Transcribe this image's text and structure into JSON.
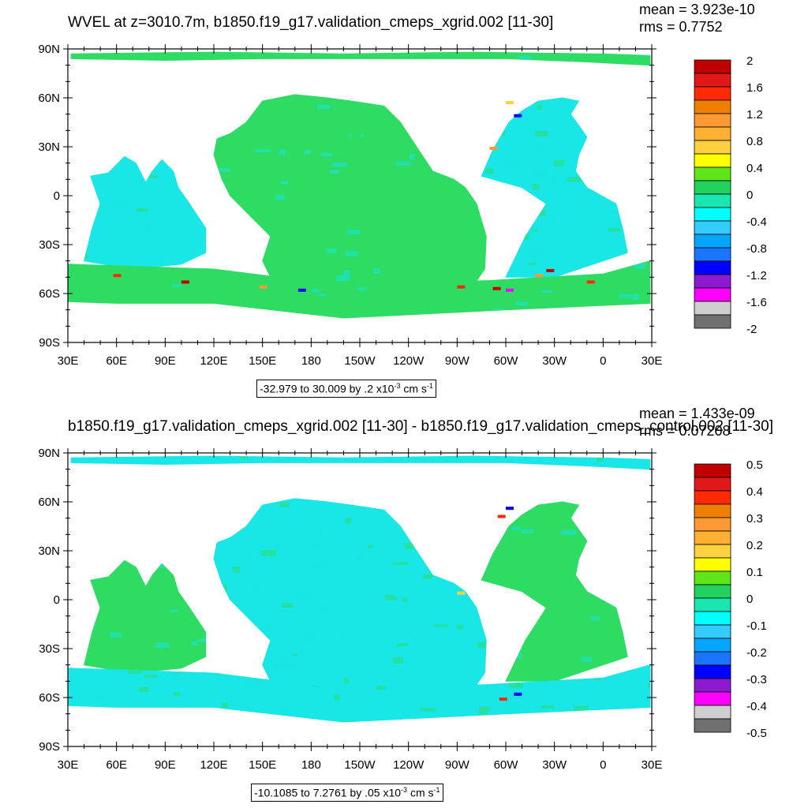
{
  "panels": [
    {
      "title": "WVEL at z=3010.7m, b1850.f19_g17.validation_cmeps_xgrid.002 [11-30]",
      "mean": "mean = 3.923e-10",
      "rms": "rms = 0.7752",
      "range_text": "-32.979 to 30.009 by .2 x10",
      "range_exp": "-3",
      "range_unit": " cm s",
      "range_unit_exp": "-1",
      "colorbar_labels": [
        "2",
        "1.6",
        "1.2",
        "0.8",
        "0.4",
        "0",
        "-0.4",
        "-0.8",
        "-1.2",
        "-1.6",
        "-2"
      ]
    },
    {
      "title": "b1850.f19_g17.validation_cmeps_xgrid.002 [11-30] - b1850.f19_g17.validation_cmeps_control.002 [11-30]",
      "mean": "mean = 1.433e-09",
      "rms": "rms = 0.07208",
      "range_text": "-10.1085 to 7.2761 by .05 x10",
      "range_exp": "-3",
      "range_unit": " cm s",
      "range_unit_exp": "-1",
      "colorbar_labels": [
        "0.5",
        "0.4",
        "0.3",
        "0.2",
        "0.1",
        "0",
        "-0.1",
        "-0.2",
        "-0.3",
        "-0.4",
        "-0.5"
      ]
    }
  ],
  "lat_labels": [
    "90N",
    "60N",
    "30N",
    "0",
    "30S",
    "60S",
    "90S"
  ],
  "lon_labels": [
    "30E",
    "60E",
    "90E",
    "120E",
    "150E",
    "180",
    "150W",
    "120W",
    "90W",
    "60W",
    "30W",
    "0",
    "30E"
  ],
  "colorbar_colors": [
    "#c00000",
    "#e01818",
    "#ff2a00",
    "#ee8000",
    "#ff9933",
    "#ffb030",
    "#ffd040",
    "#ffff00",
    "#5fe61a",
    "#21d25f",
    "#19e6b0",
    "#00ffff",
    "#33ccff",
    "#00a6ff",
    "#1a75ff",
    "#0000ff",
    "#8c1ad1",
    "#ff00ff",
    "#cfcfcf",
    "#707070"
  ],
  "ocean_colors": {
    "cyan": "#19e6e6",
    "green": "#2edc64"
  }
}
